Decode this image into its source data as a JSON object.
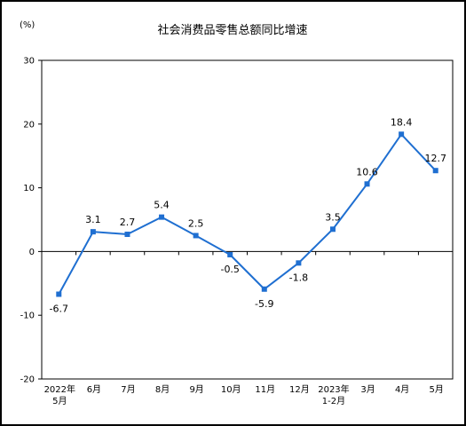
{
  "chart_data": {
    "type": "line",
    "title": "社会消费品零售总额同比增速",
    "ylabel": "(%)",
    "xlabel": "",
    "ylim": [
      -20,
      30
    ],
    "yticks": [
      "30",
      "20",
      "10",
      "0",
      "-10",
      "-20"
    ],
    "categories": [
      [
        "2022年",
        "5月"
      ],
      [
        "6月"
      ],
      [
        "7月"
      ],
      [
        "8月"
      ],
      [
        "9月"
      ],
      [
        "10月"
      ],
      [
        "11月"
      ],
      [
        "12月"
      ],
      [
        "2023年",
        "1-2月"
      ],
      [
        "3月"
      ],
      [
        "4月"
      ],
      [
        "5月"
      ]
    ],
    "values": [
      -6.7,
      3.1,
      2.7,
      5.4,
      2.5,
      -0.5,
      -5.9,
      -1.8,
      3.5,
      10.6,
      18.4,
      12.7
    ],
    "data_labels": [
      "-6.7",
      "3.1",
      "2.7",
      "5.4",
      "2.5",
      "-0.5",
      "-5.9",
      "-1.8",
      "3.5",
      "10.6",
      "18.4",
      "12.7"
    ],
    "grid": false,
    "colors": {
      "line": "#1f6fd1",
      "marker": "#1f6fd1",
      "axis": "#000000"
    }
  }
}
